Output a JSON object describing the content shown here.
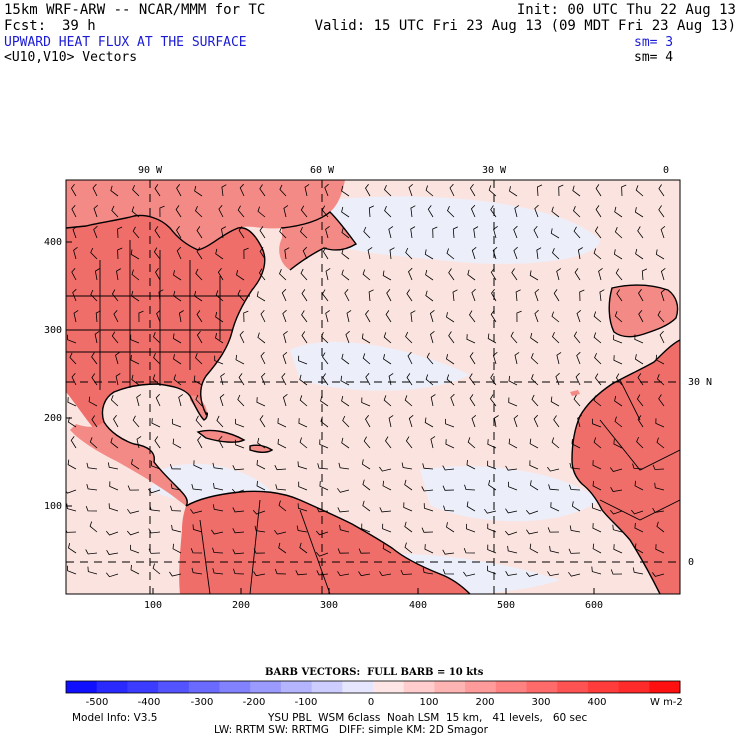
{
  "header": {
    "model": "15km WRF-ARW -- NCAR/MMM for TC",
    "init": "Init: 00 UTC Thu 22 Aug 13",
    "fcst_label": "Fcst:",
    "fcst_value": "39 h",
    "valid": "Valid: 15 UTC Fri 23 Aug 13 (09 MDT Fri 23 Aug 13)",
    "field_title": "UPWARD HEAT FLUX AT THE SURFACE",
    "field_sm": "sm= 3",
    "vector_title": "<U10,V10> Vectors",
    "vector_sm": "sm= 4"
  },
  "map": {
    "top_lon_labels": [
      "90 W",
      "60 W",
      "30 W",
      "0"
    ],
    "right_lat_labels": [
      "30 N",
      "0"
    ],
    "y_ticks": [
      "400",
      "300",
      "200",
      "100"
    ],
    "x_ticks": [
      "100",
      "200",
      "300",
      "400",
      "500",
      "600"
    ],
    "colors": {
      "ocean": "#fbe4e0",
      "ocean_cool": "#eceef9",
      "land": "#f48a86",
      "land_warm": "#ef6e6a",
      "coast": "#000000"
    }
  },
  "colorbar": {
    "title": "BARB VECTORS:  FULL BARB = 10 kts",
    "labels": [
      "-500",
      "-400",
      "-300",
      "-200",
      "-100",
      "0",
      "100",
      "200",
      "300",
      "400"
    ],
    "unit": "W m-2",
    "colors": [
      "#1010ff",
      "#2a2aff",
      "#3c3cff",
      "#5353ff",
      "#6a6aff",
      "#8282ff",
      "#9b9bff",
      "#b4b4ff",
      "#cdcdff",
      "#e6e6ff",
      "#ffe6e6",
      "#ffcdcd",
      "#ffb4b4",
      "#ff9b9b",
      "#ff8282",
      "#ff6a6a",
      "#ff5353",
      "#ff3c3c",
      "#ff2a2a",
      "#ff1010"
    ]
  },
  "footer": {
    "model_info": "Model Info: V3.5",
    "line1": "YSU PBL  WSM 6class  Noah LSM  15 km,   41 levels,   60 sec",
    "line2": "LW: RRTM SW: RRTMG   DIFF: simple KM: 2D Smagor"
  }
}
